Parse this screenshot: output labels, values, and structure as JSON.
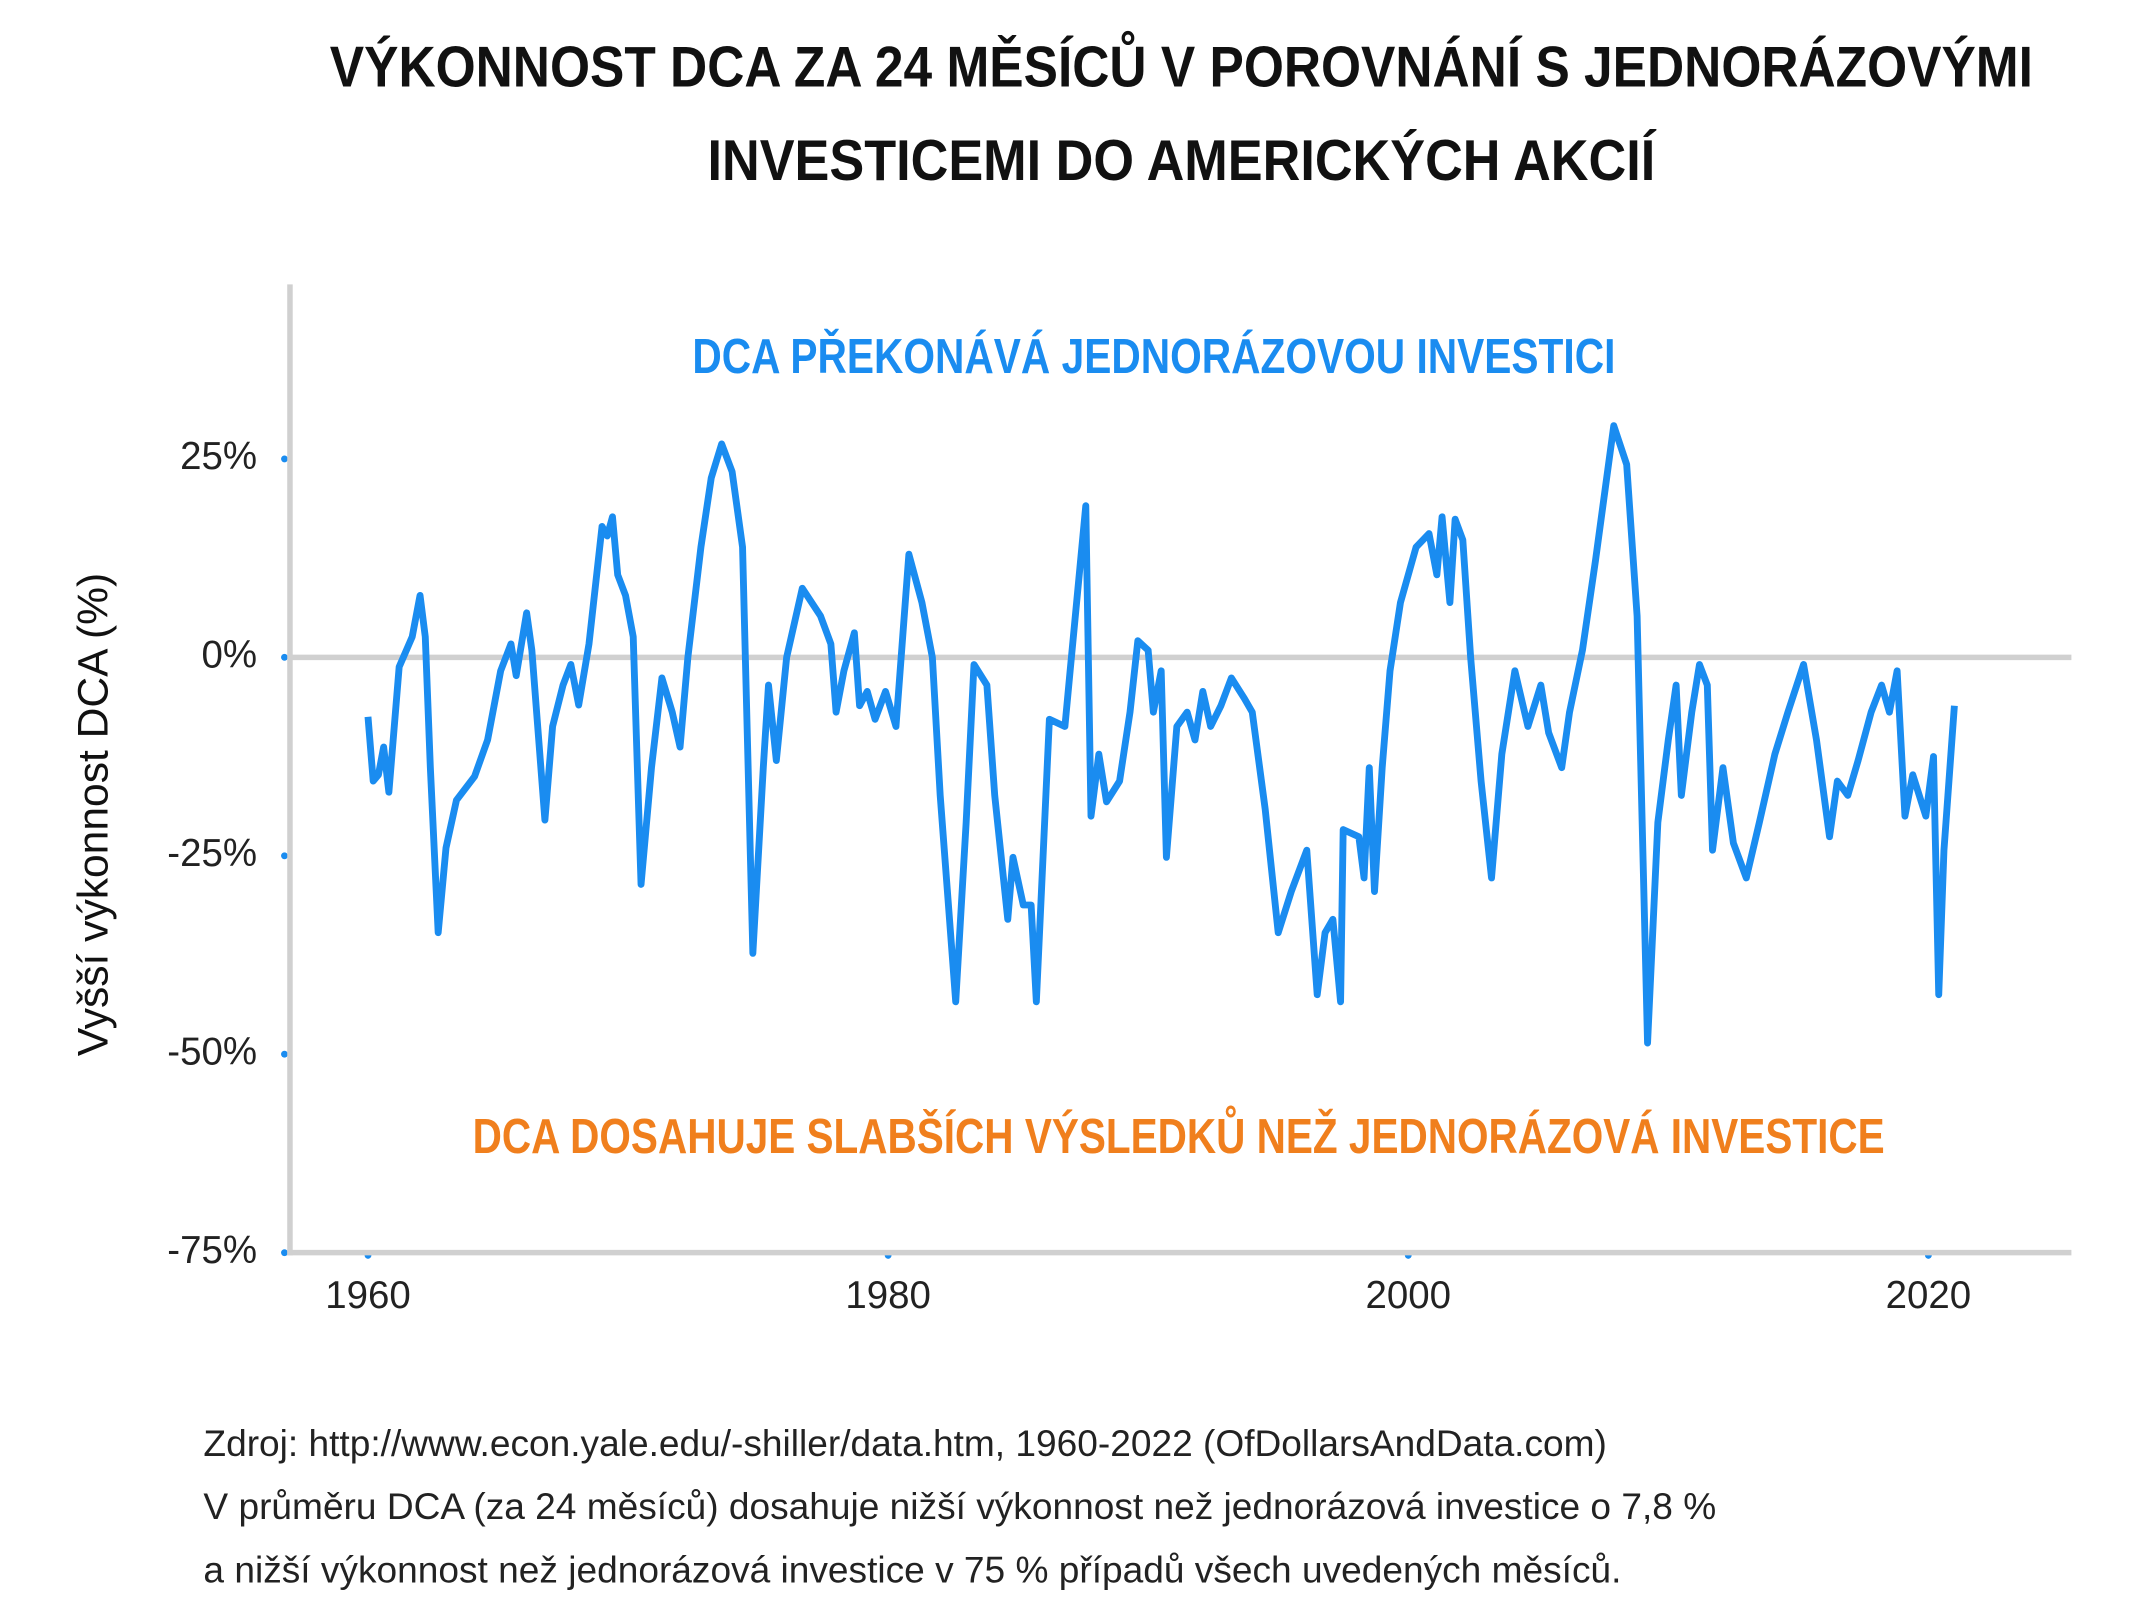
{
  "chart_data": {
    "type": "line",
    "title": [
      "VÝKONNOST DCA ZA 24 MĚSÍCŮ V POROVNÁNÍ S JEDNORÁZOVÝMI",
      "INVESTICEMI DO AMERICKÝCH AKCIÍ"
    ],
    "annotations": [
      {
        "text": "DCA PŘEKONÁVÁ JEDNORÁZOVOU INVESTICI",
        "color": "#1a8cf0"
      },
      {
        "text": "DCA DOSAHUJE SLABŠÍCH VÝSLEDKŮ NEŽ JEDNORÁZOVÁ INVESTICE",
        "color": "#f07f1d"
      }
    ],
    "y_label": "Vyšší výkonnost DCA (%)",
    "notes": [
      "Zdroj: http://www.econ.yale.edu/-shiller/data.htm, 1960-2022 (OfDollarsAndData.com)",
      "V průměru DCA (za 24 měsíců) dosahuje nižší výkonnost než jednorázová investice o 7,8 %",
      "a nižší výkonnost než jednorázová investice v 75 % případů všech uvedených měsíců."
    ],
    "xlim": [
      1957,
      2025.5
    ],
    "xticks": [
      1960,
      1980,
      2000,
      2020
    ],
    "ylim": [
      -75,
      47
    ],
    "yticks": [
      {
        "value": 25,
        "label": "25%"
      },
      {
        "value": 0,
        "label": "0%"
      },
      {
        "value": -25,
        "label": "-25%"
      },
      {
        "value": -50,
        "label": "-50%"
      },
      {
        "value": -75,
        "label": "-75%"
      }
    ],
    "series": [
      {
        "name": "DCA",
        "color": "#1a8cf0",
        "x": [
          1960.0,
          1960.2,
          1960.4,
          1960.6,
          1960.8,
          1961.2,
          1961.7,
          1962.0,
          1962.2,
          1962.4,
          1962.7,
          1963.0,
          1963.4,
          1964.1,
          1964.6,
          1965.1,
          1965.5,
          1965.7,
          1966.1,
          1966.3,
          1966.8,
          1967.1,
          1967.5,
          1967.8,
          1968.1,
          1968.5,
          1969.0,
          1969.2,
          1969.4,
          1969.6,
          1969.9,
          1970.2,
          1970.5,
          1970.9,
          1971.3,
          1971.7,
          1972.0,
          1972.3,
          1972.8,
          1973.2,
          1973.6,
          1974.0,
          1974.4,
          1974.8,
          1975.2,
          1975.4,
          1975.7,
          1976.1,
          1976.7,
          1977.4,
          1977.8,
          1978.0,
          1978.3,
          1978.7,
          1978.9,
          1979.2,
          1979.5,
          1979.9,
          1980.3,
          1980.8,
          1981.3,
          1981.7,
          1982.0,
          1982.6,
          1983.0,
          1983.3,
          1983.8,
          1984.1,
          1984.6,
          1984.8,
          1985.2,
          1985.5,
          1985.7,
          1986.2,
          1986.8,
          1987.0,
          1987.6,
          1987.8,
          1988.1,
          1988.4,
          1988.9,
          1989.3,
          1989.6,
          1990.0,
          1990.2,
          1990.5,
          1990.7,
          1991.1,
          1991.5,
          1991.8,
          1992.1,
          1992.4,
          1992.8,
          1993.2,
          1993.7,
          1994.0,
          1994.5,
          1995.0,
          1995.5,
          1996.1,
          1996.5,
          1996.8,
          1997.1,
          1997.4,
          1997.5,
          1998.1,
          1998.3,
          1998.5,
          1998.7,
          1999.0,
          1999.3,
          1999.7,
          2000.3,
          2000.8,
          2001.1,
          2001.3,
          2001.6,
          2001.8,
          2002.1,
          2002.4,
          2002.8,
          2003.2,
          2003.6,
          2004.1,
          2004.6,
          2005.1,
          2005.4,
          2005.9,
          2006.2,
          2006.7,
          2007.2,
          2007.9,
          2008.4,
          2008.8,
          2009.2,
          2009.6,
          2010.0,
          2010.3,
          2010.5,
          2010.9,
          2011.2,
          2011.5,
          2011.7,
          2012.1,
          2012.5,
          2013.0,
          2013.5,
          2014.1,
          2014.6,
          2015.2,
          2015.7,
          2016.2,
          2016.5,
          2016.9,
          2017.3,
          2017.8,
          2018.2,
          2018.5,
          2018.8,
          2019.1,
          2019.4,
          2019.9,
          2020.2,
          2020.4,
          2020.6,
          2021.0
        ],
        "values": [
          -7.5,
          -15.6,
          -14.8,
          -11.3,
          -17,
          -1.2,
          2.6,
          7.8,
          2.6,
          -13.9,
          -34.7,
          -24,
          -18,
          -15,
          -10.4,
          -1.7,
          1.7,
          -2.3,
          5.6,
          0.9,
          -20.5,
          -8.7,
          -3.5,
          -0.9,
          -6,
          1.7,
          16.5,
          15.3,
          17.7,
          10.4,
          7.8,
          2.6,
          -28.6,
          -13.9,
          -2.6,
          -6.9,
          -11.3,
          0,
          13.9,
          22.6,
          26.9,
          23.4,
          13.9,
          -37.3,
          -13.9,
          -3.5,
          -13,
          0,
          8.7,
          5.2,
          1.7,
          -6.9,
          -1.7,
          3.1,
          -6.1,
          -4.3,
          -7.8,
          -4.3,
          -8.7,
          13,
          6.9,
          0,
          -17.4,
          -43.4,
          -20.8,
          -0.9,
          -3.5,
          -17.4,
          -33,
          -25.2,
          -31.2,
          -31.2,
          -43.4,
          -7.8,
          -8.7,
          -1.7,
          19.1,
          -20,
          -12.2,
          -18.2,
          -15.6,
          -6.9,
          2.1,
          0.9,
          -6.9,
          -1.7,
          -25.2,
          -8.7,
          -6.9,
          -10.4,
          -4.3,
          -8.7,
          -6.1,
          -2.6,
          -5.2,
          -6.9,
          -19.1,
          -34.7,
          -29.5,
          -24.3,
          -42.5,
          -34.7,
          -33,
          -43.4,
          -21.7,
          -22.6,
          -27.8,
          -13.9,
          -29.5,
          -13.9,
          -1.7,
          6.9,
          13.9,
          15.6,
          10.4,
          17.7,
          6.9,
          17.4,
          14.8,
          0,
          -15.6,
          -27.8,
          -12.2,
          -1.7,
          -8.7,
          -3.5,
          -9.5,
          -13.9,
          -6.9,
          0.9,
          12.2,
          29.2,
          24.3,
          5.2,
          -48.6,
          -20.8,
          -10.4,
          -3.5,
          -17.4,
          -6.9,
          -0.9,
          -3.5,
          -24.3,
          -13.9,
          -23.4,
          -27.8,
          -20.8,
          -12.2,
          -6.9,
          -0.9,
          -10.4,
          -22.6,
          -15.6,
          -17.4,
          -13,
          -6.9,
          -3.5,
          -6.9,
          -1.7,
          -20,
          -14.8,
          -20,
          -12.5,
          -42.5,
          -24.3,
          -6.1
        ]
      }
    ]
  }
}
